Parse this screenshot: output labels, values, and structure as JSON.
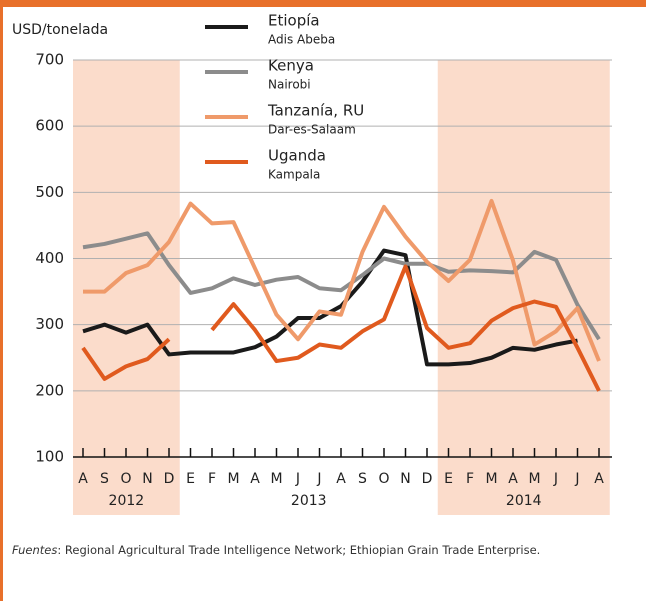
{
  "chart_data": {
    "type": "line",
    "y_label": "USD/tonelada",
    "categories": [
      "A",
      "S",
      "O",
      "N",
      "D",
      "E",
      "F",
      "M",
      "A",
      "M",
      "J",
      "J",
      "A",
      "S",
      "O",
      "N",
      "D",
      "E",
      "F",
      "M",
      "A",
      "M",
      "J",
      "J",
      "A"
    ],
    "x_groups": [
      {
        "label": "2012",
        "start": 0,
        "end": 4,
        "shaded": true
      },
      {
        "label": "2013",
        "start": 5,
        "end": 16,
        "shaded": false
      },
      {
        "label": "2014",
        "start": 17,
        "end": 24,
        "shaded": true
      }
    ],
    "ylim": [
      100,
      700
    ],
    "yticks": [
      100,
      200,
      300,
      400,
      500,
      600,
      700
    ],
    "grid": true,
    "series": [
      {
        "name": "Etiopía",
        "city": "Adis Abeba",
        "color": "#1a1a1a",
        "values": [
          290,
          300,
          288,
          300,
          255,
          258,
          258,
          258,
          266,
          282,
          310,
          310,
          328,
          365,
          412,
          405,
          240,
          240,
          242,
          250,
          265,
          262,
          270,
          276,
          null
        ]
      },
      {
        "name": "Kenya",
        "city": "Nairobi",
        "color": "#8c8c8c",
        "values": [
          417,
          422,
          430,
          438,
          390,
          348,
          355,
          370,
          360,
          368,
          372,
          355,
          352,
          375,
          400,
          392,
          392,
          380,
          382,
          381,
          379,
          410,
          398,
          330,
          278
        ]
      },
      {
        "name": "Tanzanía, RU",
        "city": "Dar-es-Salaam",
        "color": "#ef9a6a",
        "values": [
          350,
          350,
          378,
          390,
          425,
          483,
          453,
          455,
          385,
          315,
          278,
          320,
          315,
          410,
          478,
          433,
          395,
          366,
          398,
          487,
          397,
          270,
          290,
          325,
          245
        ]
      },
      {
        "name": "Uganda",
        "city": "Kampala",
        "color": "#e05a1e",
        "values": [
          265,
          218,
          237,
          248,
          278,
          null,
          292,
          331,
          292,
          245,
          250,
          270,
          265,
          290,
          308,
          388,
          295,
          265,
          272,
          306,
          325,
          335,
          327,
          265,
          200
        ]
      }
    ],
    "source_label": "Fuentes",
    "source": ": Regional Agricultural Trade Intelligence Network; Ethiopian Grain Trade Enterprise."
  }
}
